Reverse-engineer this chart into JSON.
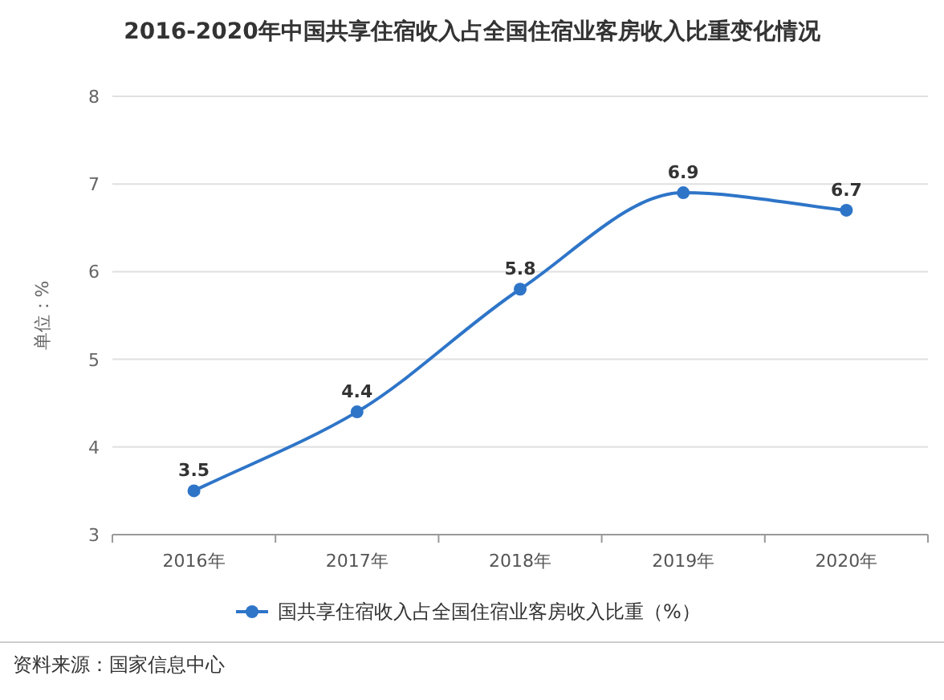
{
  "chart_data": {
    "type": "line",
    "title": "2016-2020年中国共享住宿收入占全国住宿业客房收入比重变化情况",
    "ylabel": "单位：%",
    "categories": [
      "2016年",
      "2017年",
      "2018年",
      "2019年",
      "2020年"
    ],
    "series": [
      {
        "name": "国共享住宿收入占全国住宿业客房收入比重（%）",
        "color": "#2e75c8",
        "values": [
          3.5,
          4.4,
          5.8,
          6.9,
          6.7
        ]
      }
    ],
    "ylim": [
      3,
      8
    ],
    "yticks": [
      3,
      4,
      5,
      6,
      7,
      8
    ],
    "grid": "y",
    "legend": "bottom",
    "marker": "circle",
    "line_style": "solid",
    "data_labels": true,
    "annotations": [
      "资料来源：国家信息中心"
    ]
  }
}
